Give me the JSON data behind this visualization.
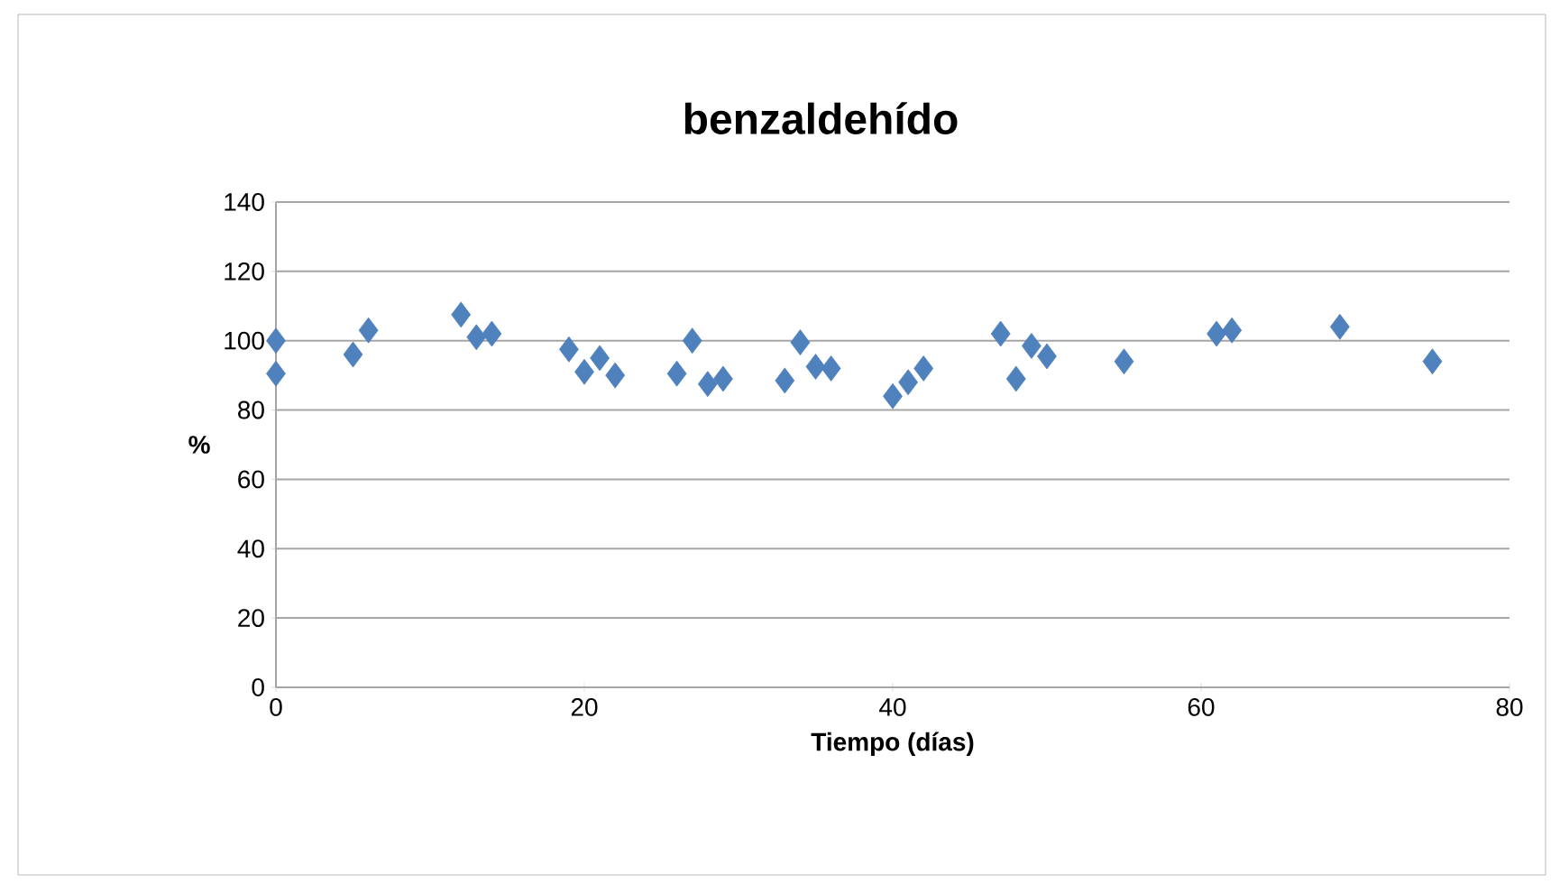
{
  "chart_data": {
    "type": "scatter",
    "title": "benzaldehído",
    "xlabel": "Tiempo (días)",
    "ylabel": "%",
    "x": [
      0,
      0,
      5,
      6,
      12,
      13,
      14,
      19,
      20,
      21,
      22,
      26,
      27,
      28,
      29,
      33,
      34,
      35,
      36,
      40,
      41,
      42,
      47,
      48,
      49,
      50,
      55,
      61,
      62,
      69,
      75
    ],
    "values": [
      100,
      90.5,
      96,
      103,
      107.5,
      101,
      102,
      97.5,
      91,
      95,
      90,
      90.5,
      100,
      87.5,
      89,
      88.5,
      99.5,
      92.5,
      92,
      84,
      88,
      92,
      102,
      89,
      98.5,
      95.5,
      94,
      102,
      103,
      104,
      94
    ],
    "color": "#4f81bd",
    "marker": "diamond",
    "xlim": [
      0,
      80
    ],
    "xticks": [
      0,
      20,
      40,
      60,
      80
    ],
    "ylim": [
      0,
      140
    ],
    "yticks": [
      0,
      20,
      40,
      60,
      80,
      100,
      120,
      140
    ],
    "grid": "y"
  }
}
